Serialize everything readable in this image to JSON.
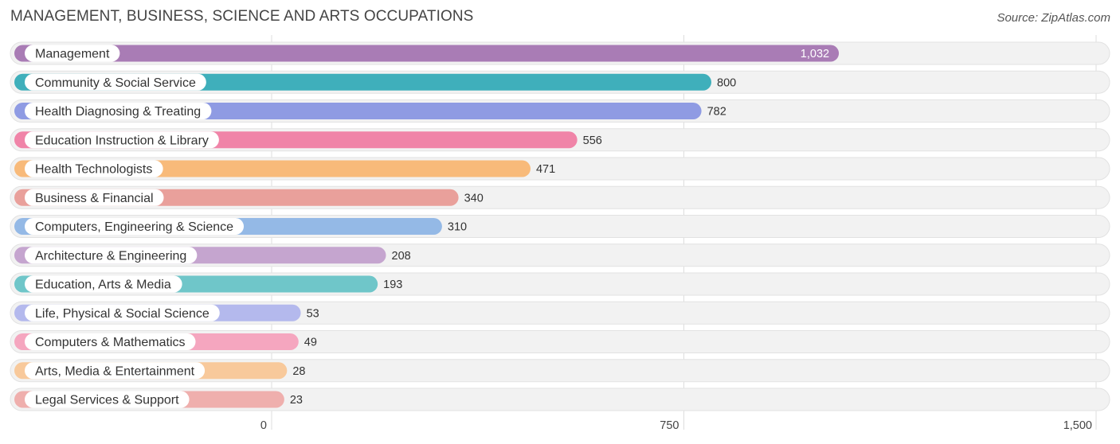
{
  "header": {
    "title": "MANAGEMENT, BUSINESS, SCIENCE AND ARTS OCCUPATIONS",
    "source": "Source: ZipAtlas.com"
  },
  "chart_data": {
    "type": "bar",
    "orientation": "horizontal",
    "title": "MANAGEMENT, BUSINESS, SCIENCE AND ARTS OCCUPATIONS",
    "xlabel": "",
    "ylabel": "",
    "xlim": [
      0,
      1500
    ],
    "x_ticks": [
      0,
      750,
      1500
    ],
    "x_tick_labels": [
      "0",
      "750",
      "1,500"
    ],
    "grid": true,
    "categories": [
      "Management",
      "Community & Social Service",
      "Health Diagnosing & Treating",
      "Education Instruction & Library",
      "Health Technologists",
      "Business & Financial",
      "Computers, Engineering & Science",
      "Architecture & Engineering",
      "Education, Arts & Media",
      "Life, Physical & Social Science",
      "Computers & Mathematics",
      "Arts, Media & Entertainment",
      "Legal Services & Support"
    ],
    "values": [
      1032,
      800,
      782,
      556,
      471,
      340,
      310,
      208,
      193,
      53,
      49,
      28,
      23
    ],
    "value_labels": [
      "1,032",
      "800",
      "782",
      "556",
      "471",
      "340",
      "310",
      "208",
      "193",
      "53",
      "49",
      "28",
      "23"
    ],
    "colors": [
      "#a97cb5",
      "#3fafbb",
      "#8f9be3",
      "#f084a8",
      "#f8ba7a",
      "#e9a09b",
      "#94b9e6",
      "#c5a5cf",
      "#6fc6c9",
      "#b4b9ed",
      "#f5a6bf",
      "#f8c99b",
      "#efafad"
    ]
  }
}
